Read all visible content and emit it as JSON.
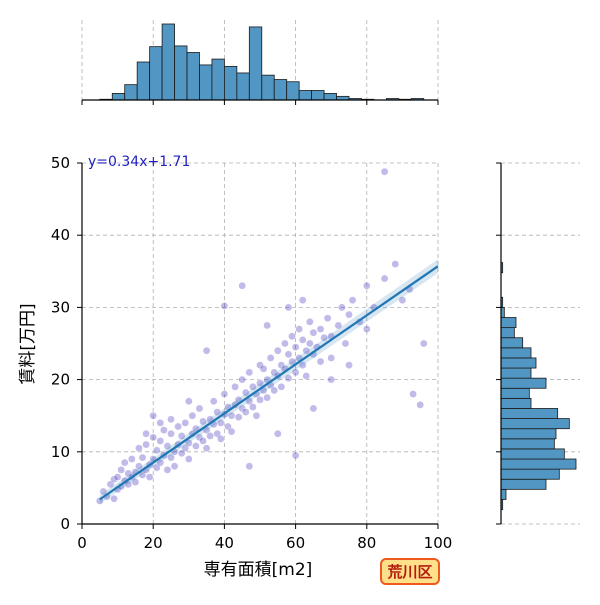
{
  "chart_data": {
    "type": "scatter",
    "annotation": "y=0.34x+1.71",
    "xlabel": "専有面積[m2]",
    "ylabel": "賃料[万円]",
    "xlim": [
      0,
      100
    ],
    "ylim": [
      0,
      50
    ],
    "x_ticks": [
      "0",
      "20",
      "40",
      "60",
      "80",
      "100"
    ],
    "y_ticks": [
      "0",
      "10",
      "20",
      "30",
      "40",
      "50"
    ],
    "grid": true,
    "colors": {
      "scatter": "#3a2db8",
      "regression": "#1f77b4",
      "hist_fill": "#5296c3",
      "annotation": "#1f1fc0",
      "grid": "#b0b0b0"
    },
    "regression": {
      "slope": 0.34,
      "intercept": 1.71,
      "x_range": [
        5,
        100
      ]
    },
    "x_histogram": {
      "bin_edges": [
        5,
        8.5,
        12,
        15.5,
        19,
        22.5,
        26,
        29.5,
        33,
        36.5,
        40,
        43.5,
        47,
        50.5,
        54,
        57.5,
        61,
        64.5,
        68,
        71.5,
        75,
        78.5,
        82,
        85.5,
        89,
        92.5,
        96
      ],
      "counts": [
        1,
        9,
        21,
        52,
        73,
        104,
        74,
        65,
        48,
        56,
        46,
        37,
        100,
        34,
        28,
        25,
        13,
        13,
        9,
        5,
        2,
        1,
        0,
        2,
        1,
        2
      ]
    },
    "y_histogram": {
      "bin_edges": [
        2,
        3.4,
        4.8,
        6.2,
        7.6,
        9,
        10.4,
        11.8,
        13.2,
        14.6,
        16,
        17.4,
        18.8,
        20.2,
        21.6,
        23,
        24.4,
        25.8,
        27.2,
        28.6,
        30,
        31.4,
        32.4,
        33.6,
        34.8,
        36.2
      ],
      "counts": [
        1,
        3,
        27,
        35,
        45,
        38,
        32,
        33,
        41,
        34,
        18,
        17,
        27,
        18,
        21,
        18,
        13,
        8,
        9,
        2,
        1,
        0,
        0,
        0,
        1
      ]
    },
    "points": [
      [
        5,
        3.2
      ],
      [
        6,
        4.5
      ],
      [
        7,
        3.8
      ],
      [
        8,
        5.5
      ],
      [
        9,
        3.5
      ],
      [
        9,
        6.2
      ],
      [
        10,
        4.8
      ],
      [
        10,
        6.5
      ],
      [
        11,
        5.2
      ],
      [
        11,
        7.5
      ],
      [
        12,
        6
      ],
      [
        12,
        8.5
      ],
      [
        13,
        5.5
      ],
      [
        13,
        7
      ],
      [
        14,
        6.5
      ],
      [
        14,
        9
      ],
      [
        15,
        7.2
      ],
      [
        15,
        5.8
      ],
      [
        16,
        8
      ],
      [
        16,
        10.5
      ],
      [
        17,
        6.8
      ],
      [
        17,
        9.2
      ],
      [
        18,
        7.5
      ],
      [
        18,
        11
      ],
      [
        19,
        8.2
      ],
      [
        19,
        6.5
      ],
      [
        20,
        9
      ],
      [
        20,
        12
      ],
      [
        21,
        7.8
      ],
      [
        21,
        10.2
      ],
      [
        22,
        8.5
      ],
      [
        22,
        11.5
      ],
      [
        23,
        9.5
      ],
      [
        23,
        13
      ],
      [
        24,
        7.5
      ],
      [
        24,
        10.8
      ],
      [
        25,
        9.2
      ],
      [
        25,
        12.5
      ],
      [
        25,
        14.5
      ],
      [
        26,
        10
      ],
      [
        26,
        8
      ],
      [
        27,
        11
      ],
      [
        27,
        13.5
      ],
      [
        28,
        9.8
      ],
      [
        28,
        12.2
      ],
      [
        29,
        10.5
      ],
      [
        29,
        14
      ],
      [
        30,
        11.2
      ],
      [
        30,
        9
      ],
      [
        31,
        12.5
      ],
      [
        31,
        15
      ],
      [
        32,
        10.8
      ],
      [
        32,
        13.2
      ],
      [
        33,
        12
      ],
      [
        33,
        16
      ],
      [
        34,
        11.5
      ],
      [
        34,
        14.2
      ],
      [
        35,
        13
      ],
      [
        35,
        10.5
      ],
      [
        36,
        14.5
      ],
      [
        36,
        12.2
      ],
      [
        37,
        13.8
      ],
      [
        37,
        17
      ],
      [
        38,
        12.5
      ],
      [
        38,
        15.5
      ],
      [
        39,
        14
      ],
      [
        39,
        11.8
      ],
      [
        40,
        15.2
      ],
      [
        40,
        18
      ],
      [
        41,
        13.5
      ],
      [
        41,
        16.2
      ],
      [
        42,
        15
      ],
      [
        42,
        12.8
      ],
      [
        43,
        16.5
      ],
      [
        43,
        19
      ],
      [
        44,
        14.8
      ],
      [
        44,
        17.2
      ],
      [
        45,
        16
      ],
      [
        45,
        20
      ],
      [
        46,
        15.5
      ],
      [
        46,
        18.2
      ],
      [
        47,
        17
      ],
      [
        47,
        21
      ],
      [
        48,
        16.2
      ],
      [
        48,
        19
      ],
      [
        49,
        18
      ],
      [
        49,
        15
      ],
      [
        50,
        19.5
      ],
      [
        50,
        22
      ],
      [
        50,
        17.2
      ],
      [
        51,
        18.5
      ],
      [
        51,
        21.5
      ],
      [
        52,
        20
      ],
      [
        52,
        17.5
      ],
      [
        53,
        19.2
      ],
      [
        53,
        23
      ],
      [
        54,
        21
      ],
      [
        54,
        18.5
      ],
      [
        55,
        20.5
      ],
      [
        55,
        24
      ],
      [
        56,
        22
      ],
      [
        56,
        19
      ],
      [
        57,
        21.5
      ],
      [
        57,
        25
      ],
      [
        58,
        20.2
      ],
      [
        58,
        23.5
      ],
      [
        59,
        22.5
      ],
      [
        59,
        26
      ],
      [
        60,
        21
      ],
      [
        60,
        24.5
      ],
      [
        61,
        23
      ],
      [
        61,
        27
      ],
      [
        62,
        22
      ],
      [
        62,
        25.5
      ],
      [
        63,
        24
      ],
      [
        63,
        20.5
      ],
      [
        64,
        25
      ],
      [
        64,
        28
      ],
      [
        65,
        23.5
      ],
      [
        65,
        26.5
      ],
      [
        66,
        24.5
      ],
      [
        67,
        27
      ],
      [
        67,
        22.5
      ],
      [
        68,
        25.8
      ],
      [
        69,
        28.5
      ],
      [
        70,
        26
      ],
      [
        70,
        23
      ],
      [
        72,
        27.5
      ],
      [
        73,
        30
      ],
      [
        74,
        25
      ],
      [
        75,
        29
      ],
      [
        76,
        31
      ],
      [
        78,
        28
      ],
      [
        80,
        33
      ],
      [
        82,
        30
      ],
      [
        85,
        34
      ],
      [
        88,
        36
      ],
      [
        90,
        31
      ],
      [
        92,
        32.5
      ],
      [
        96,
        25
      ],
      [
        93,
        18
      ],
      [
        95,
        16.5
      ],
      [
        85,
        48.8
      ],
      [
        47,
        8
      ],
      [
        60,
        9.5
      ],
      [
        45,
        33
      ],
      [
        35,
        24
      ],
      [
        30,
        17
      ],
      [
        70,
        20
      ],
      [
        40,
        30.2
      ],
      [
        55,
        12.5
      ],
      [
        65,
        16
      ],
      [
        20,
        15
      ],
      [
        22,
        14
      ],
      [
        18,
        12.5
      ],
      [
        52,
        27.5
      ],
      [
        58,
        30
      ],
      [
        62,
        31
      ],
      [
        75,
        22
      ],
      [
        80,
        27
      ]
    ]
  }
}
